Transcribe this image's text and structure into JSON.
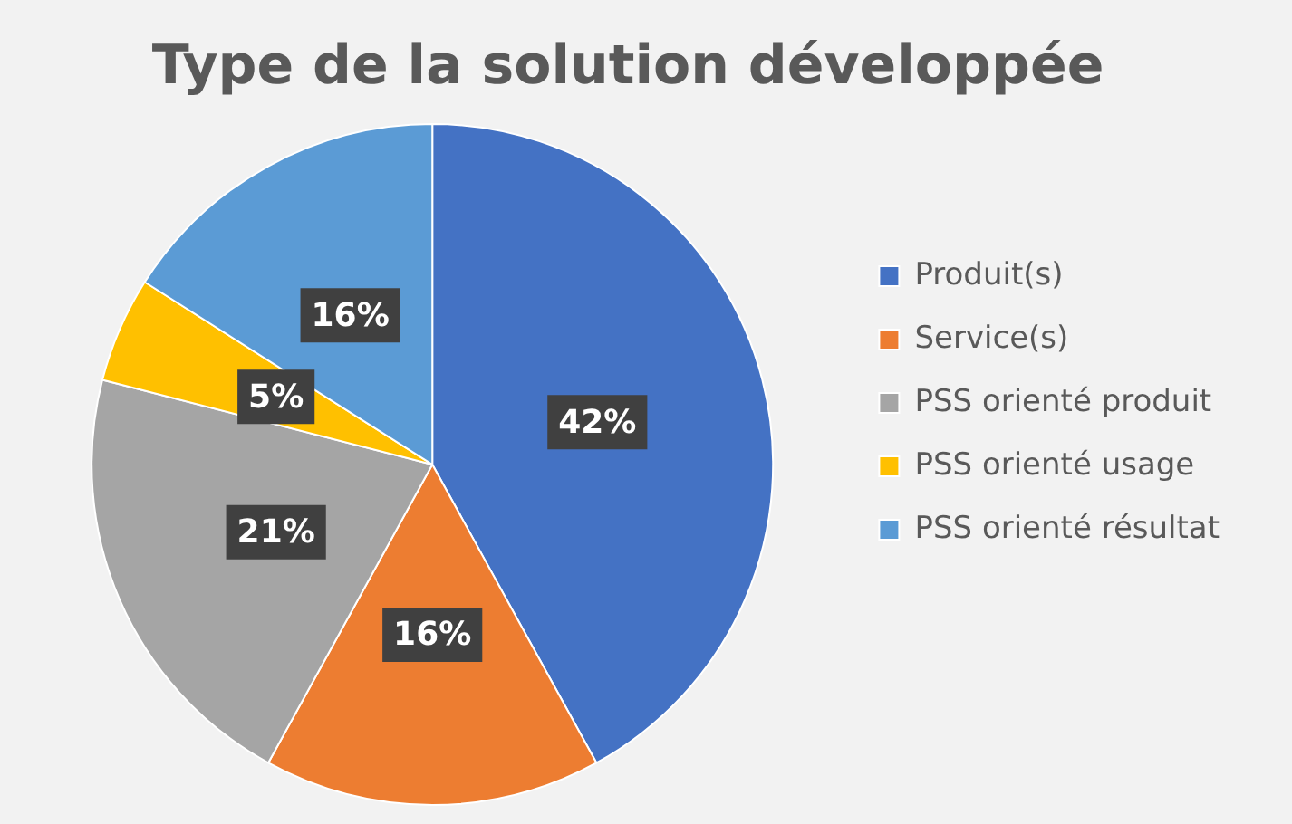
{
  "chart_data": {
    "type": "pie",
    "title": "Type de la solution développée",
    "categories": [
      "Produit(s)",
      "Service(s)",
      "PSS orienté produit",
      "PSS orienté usage",
      "PSS orienté résultat"
    ],
    "values": [
      42,
      16,
      21,
      5,
      16
    ],
    "colors": [
      "#4472c4",
      "#ed7d31",
      "#a5a5a5",
      "#ffc000",
      "#5b9bd5"
    ],
    "value_labels": [
      "42%",
      "16%",
      "21%",
      "5%",
      "16%"
    ],
    "legend": "right"
  }
}
